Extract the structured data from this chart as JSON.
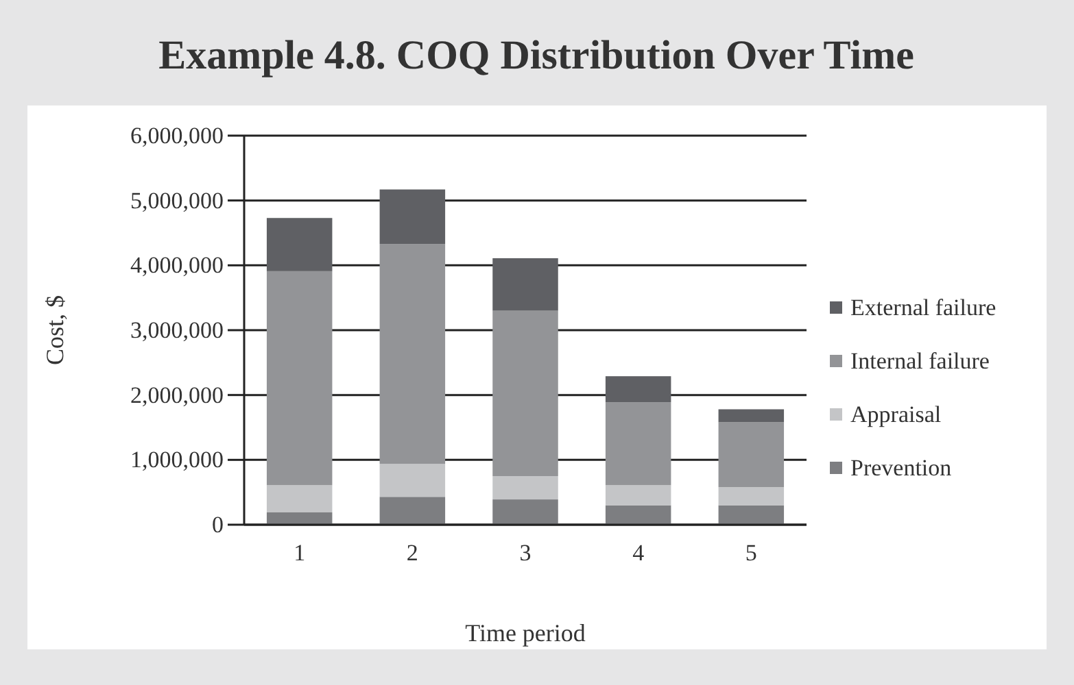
{
  "chart_data": {
    "type": "bar",
    "title": "Example 4.8. COQ Distribution Over Time",
    "xlabel": "Time period",
    "ylabel": "Cost, $",
    "categories": [
      "1",
      "2",
      "3",
      "4",
      "5"
    ],
    "stacked": true,
    "series": [
      {
        "name": "Prevention",
        "color": "#7d7e81",
        "values": [
          190000,
          430000,
          390000,
          300000,
          300000
        ]
      },
      {
        "name": "Appraisal",
        "color": "#c4c5c7",
        "values": [
          420000,
          510000,
          360000,
          310000,
          280000
        ]
      },
      {
        "name": "Internal failure",
        "color": "#939497",
        "values": [
          3300000,
          3390000,
          2550000,
          1280000,
          1000000
        ]
      },
      {
        "name": "External failure",
        "color": "#5f6064",
        "values": [
          820000,
          840000,
          810000,
          400000,
          200000
        ]
      }
    ],
    "ylim": [
      0,
      6000000
    ],
    "yticks": [
      {
        "value": 0,
        "label": "0"
      },
      {
        "value": 1000000,
        "label": "1,000,000"
      },
      {
        "value": 2000000,
        "label": "2,000,000"
      },
      {
        "value": 3000000,
        "label": "3,000,000"
      },
      {
        "value": 4000000,
        "label": "4,000,000"
      },
      {
        "value": 5000000,
        "label": "5,000,000"
      },
      {
        "value": 6000000,
        "label": "6,000,000"
      }
    ],
    "grid": "y",
    "legend": "right"
  }
}
